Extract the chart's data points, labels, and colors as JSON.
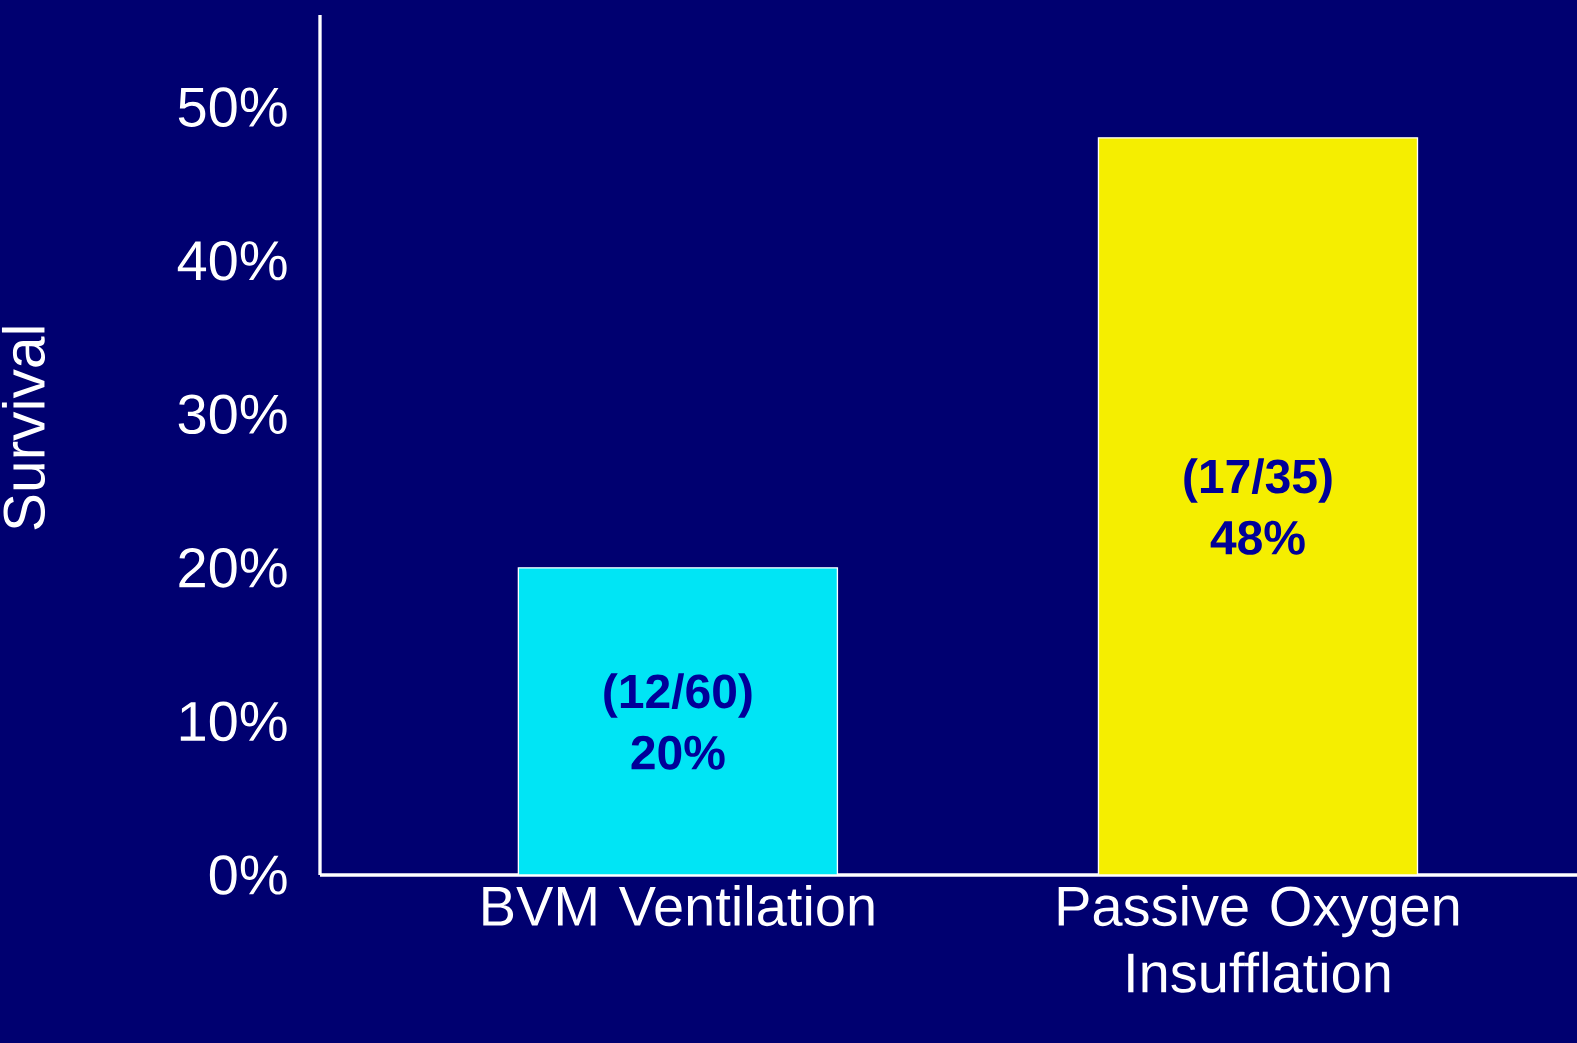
{
  "chart_data": {
    "type": "bar",
    "ylabel": "Survival",
    "categories": [
      "BVM Ventilation",
      "Passive Oxygen Insufflation"
    ],
    "values": [
      20,
      48
    ],
    "colors": [
      "#00e5f5",
      "#f5ee00"
    ],
    "value_labels": [
      "(12/60) 20%",
      "(17/35) 48%"
    ],
    "ylim": [
      0,
      56
    ],
    "yticks": [
      {
        "value": 0,
        "label": "0%"
      },
      {
        "value": 10,
        "label": "10%"
      },
      {
        "value": 20,
        "label": "20%"
      },
      {
        "value": 30,
        "label": "30%"
      },
      {
        "value": 40,
        "label": "40%"
      },
      {
        "value": 50,
        "label": "50%"
      }
    ]
  }
}
